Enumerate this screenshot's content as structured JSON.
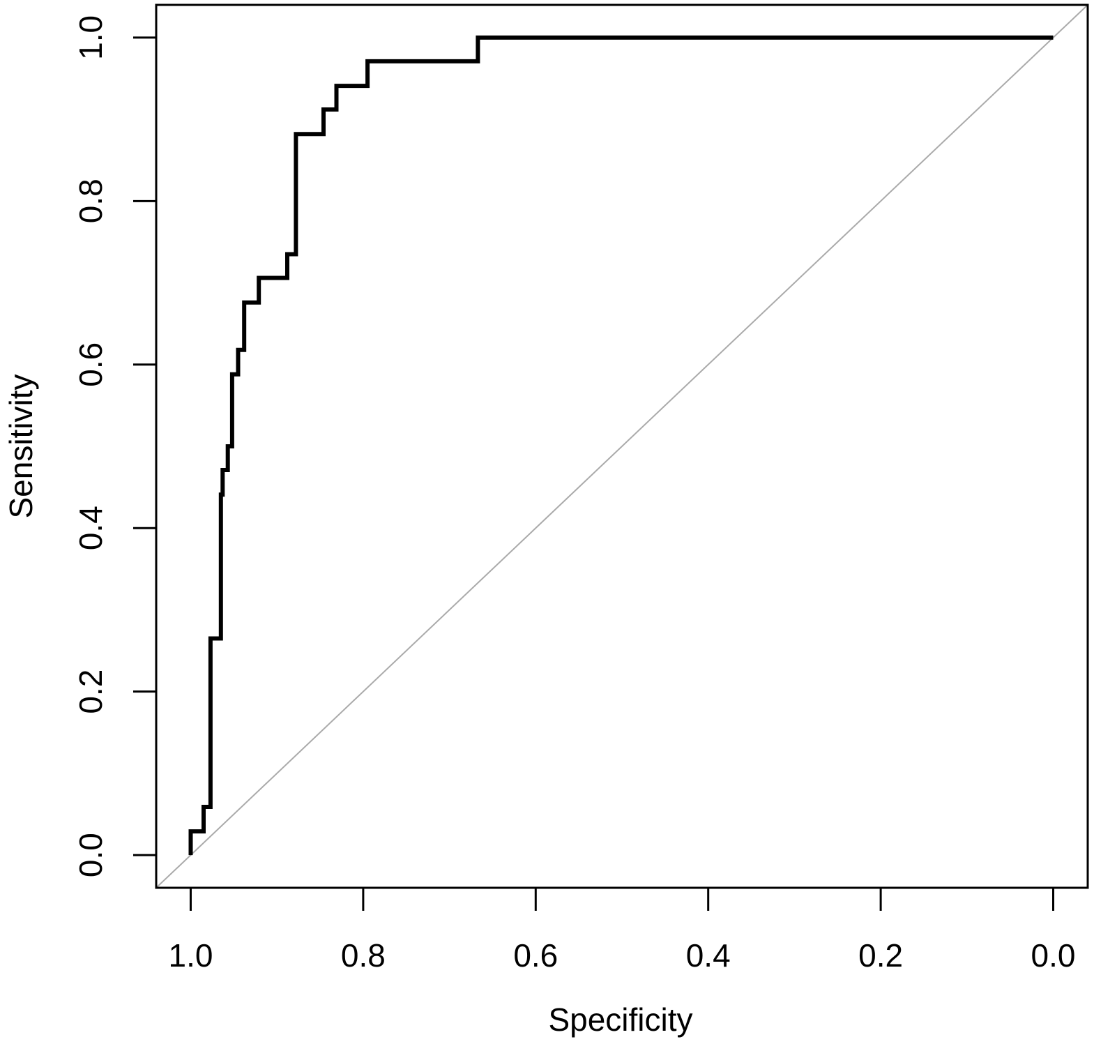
{
  "chart_data": {
    "type": "line",
    "xlabel": "Specificity",
    "ylabel": "Sensitivity",
    "xlim": [
      1.04,
      -0.04
    ],
    "ylim": [
      -0.04,
      1.04
    ],
    "x_reversed": true,
    "grid": false,
    "legend": "none",
    "x_ticks": [
      1.0,
      0.8,
      0.6,
      0.4,
      0.2,
      0.0
    ],
    "x_tick_labels": [
      "1.0",
      "0.8",
      "0.6",
      "0.4",
      "0.2",
      "0.0"
    ],
    "y_ticks": [
      0.0,
      0.2,
      0.4,
      0.6,
      0.8,
      1.0
    ],
    "y_tick_labels": [
      "0.0",
      "0.2",
      "0.4",
      "0.6",
      "0.8",
      "1.0"
    ],
    "reference_line": {
      "from": [
        1.0,
        0.0
      ],
      "to": [
        0.0,
        1.0
      ],
      "color": "#aaaaaa"
    },
    "series": [
      {
        "color": "#000000",
        "x": [
          1.0,
          1.0,
          0.985,
          0.985,
          0.977,
          0.977,
          0.965,
          0.965,
          0.963,
          0.963,
          0.957,
          0.957,
          0.952,
          0.952,
          0.945,
          0.945,
          0.938,
          0.938,
          0.921,
          0.921,
          0.888,
          0.888,
          0.878,
          0.878,
          0.846,
          0.846,
          0.831,
          0.831,
          0.795,
          0.795,
          0.667,
          0.667,
          0.0
        ],
        "y": [
          0.0,
          0.029,
          0.029,
          0.059,
          0.059,
          0.265,
          0.265,
          0.441,
          0.441,
          0.471,
          0.471,
          0.5,
          0.5,
          0.588,
          0.588,
          0.618,
          0.618,
          0.676,
          0.676,
          0.706,
          0.706,
          0.735,
          0.735,
          0.882,
          0.882,
          0.912,
          0.912,
          0.941,
          0.941,
          0.971,
          0.971,
          1.0,
          1.0
        ]
      }
    ]
  }
}
